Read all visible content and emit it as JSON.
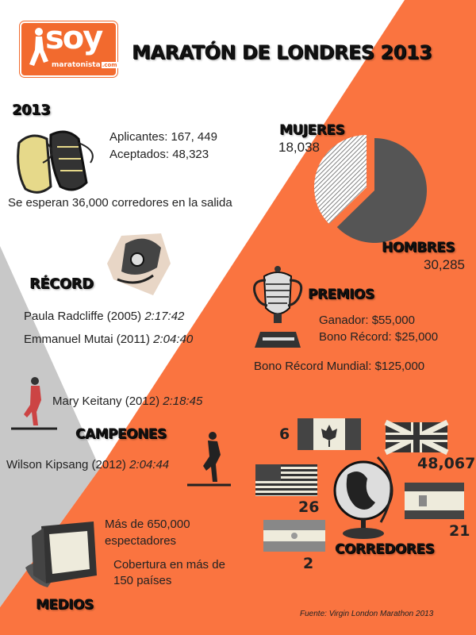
{
  "colors": {
    "orange": "#fa7440",
    "grey": "#c8c8c8",
    "logo": "#f26a2e",
    "men_slice": "#555555"
  },
  "logo": {
    "text_main": "soy",
    "text_sub": "maratonista",
    "text_domain": ".com"
  },
  "title": "MARATÓN DE LONDRES 2013",
  "year_section": {
    "heading": "2013",
    "applicants": "Aplicantes: 167, 449",
    "accepted": "Aceptados: 48,323",
    "expected": "Se esperan 36,000 corredores  en la salida"
  },
  "gender": {
    "women_label": "MUJERES",
    "women_value": "18,038",
    "men_label": "HOMBRES",
    "men_value": "30,285",
    "chart_data": {
      "type": "pie",
      "slices": [
        {
          "name": "MUJERES",
          "value": 18038
        },
        {
          "name": "HOMBRES",
          "value": 30285
        }
      ]
    }
  },
  "record": {
    "heading": "RÉCORD",
    "rows": [
      {
        "name": "Paula Radcliffe (2005)",
        "time": "2:17:42"
      },
      {
        "name": "Emmanuel Mutai (2011)",
        "time": "2:04:40"
      }
    ]
  },
  "prizes": {
    "heading": "PREMIOS",
    "winner": "Ganador: $55,000",
    "record_bonus": "Bono Récord: $25,000",
    "world_record_bonus": "Bono Récord Mundial: $125,000"
  },
  "champions": {
    "heading": "CAMPEONES",
    "women": {
      "name": "Mary Keitany  (2012)",
      "time": "2:18:45"
    },
    "men": {
      "name": "Wilson Kipsang (2012)",
      "time": "2:04:44"
    }
  },
  "runners": {
    "heading": "CORREDORES",
    "countries": [
      {
        "flag": "canada-flag",
        "value": "6"
      },
      {
        "flag": "uk-flag",
        "value": "48,067"
      },
      {
        "flag": "usa-flag",
        "value": "26"
      },
      {
        "flag": "spain-flag",
        "value": "21"
      },
      {
        "flag": "argentina-flag",
        "value": "2"
      }
    ]
  },
  "media": {
    "heading": "MEDIOS",
    "spectators_1": "Más de 650,000",
    "spectators_2": "espectadores",
    "coverage_1": "Cobertura  en más de",
    "coverage_2": "150 países"
  },
  "source": "Fuente: Virgin London Marathon 2013"
}
